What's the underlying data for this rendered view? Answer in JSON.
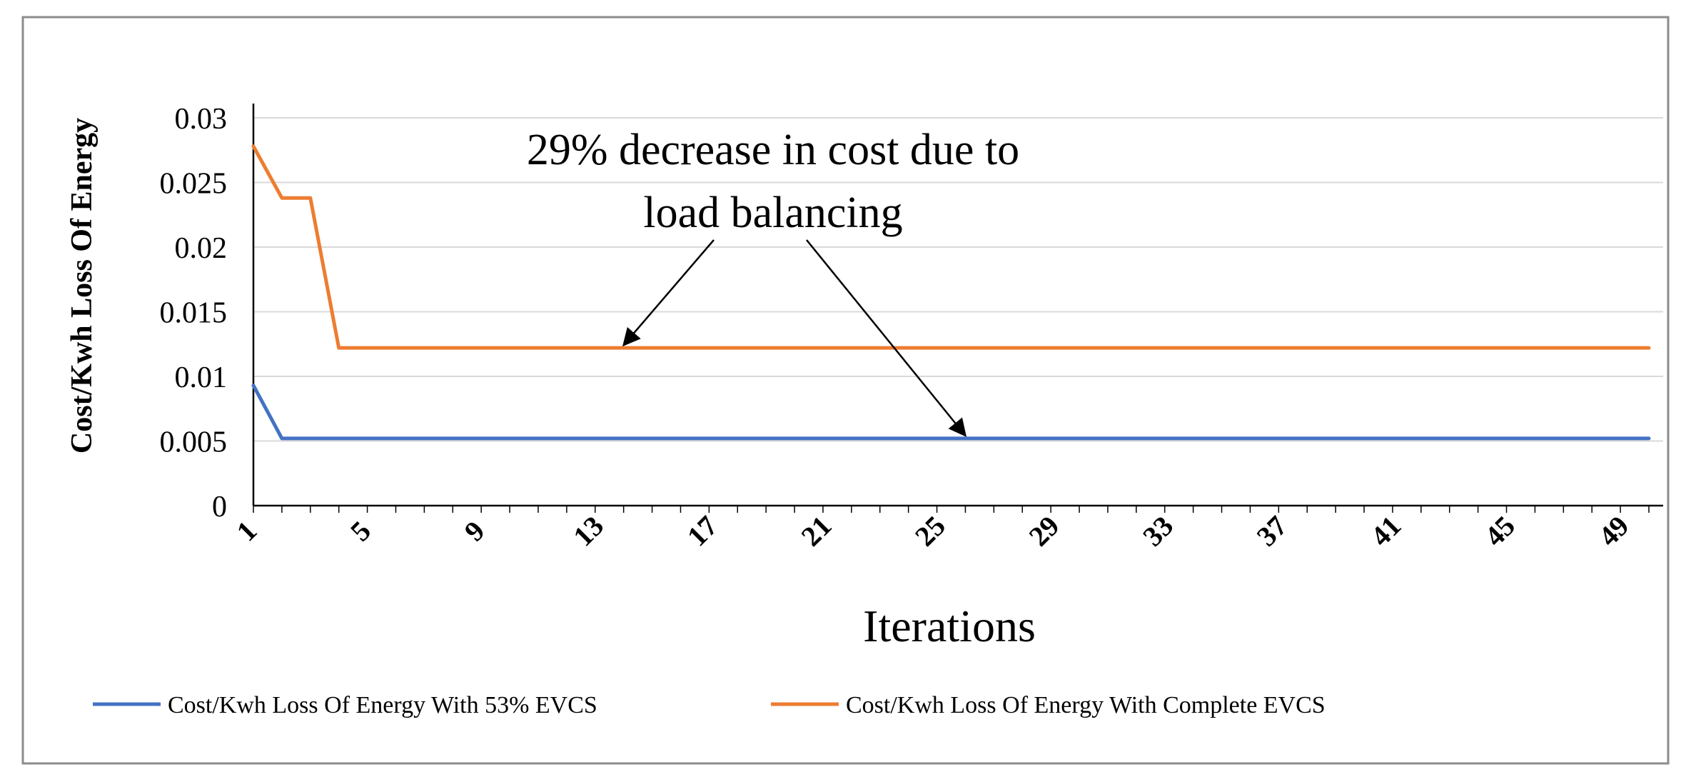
{
  "chart_data": {
    "type": "line",
    "title": "",
    "xlabel": "Iterations",
    "ylabel": "Cost/Kwh Loss Of Energy",
    "xlim": [
      1,
      50
    ],
    "ylim": [
      0,
      0.03
    ],
    "y_ticks": [
      "0",
      "0.005",
      "0.01",
      "0.015",
      "0.02",
      "0.025",
      "0.03"
    ],
    "x_ticks": [
      1,
      5,
      9,
      13,
      17,
      21,
      25,
      29,
      33,
      37,
      41,
      45,
      49
    ],
    "grid": "horizontal",
    "legend_position": "bottom",
    "annotation": {
      "lines": [
        "29% decrease in cost due to",
        "load balancing"
      ],
      "arrow_targets": [
        {
          "x": 14,
          "y": 0.0122
        },
        {
          "x": 26,
          "y": 0.0052
        }
      ]
    },
    "series": [
      {
        "name": "Cost/Kwh Loss Of Energy With 53% EVCS",
        "color": "#4472c4",
        "points": [
          [
            1,
            0.0093
          ],
          [
            2,
            0.0052
          ],
          [
            50,
            0.0052
          ]
        ]
      },
      {
        "name": "Cost/Kwh Loss Of Energy With Complete EVCS",
        "color": "#ed7d31",
        "points": [
          [
            1,
            0.0278
          ],
          [
            2,
            0.0238
          ],
          [
            3,
            0.0238
          ],
          [
            4,
            0.0122
          ],
          [
            50,
            0.0122
          ]
        ]
      }
    ]
  }
}
